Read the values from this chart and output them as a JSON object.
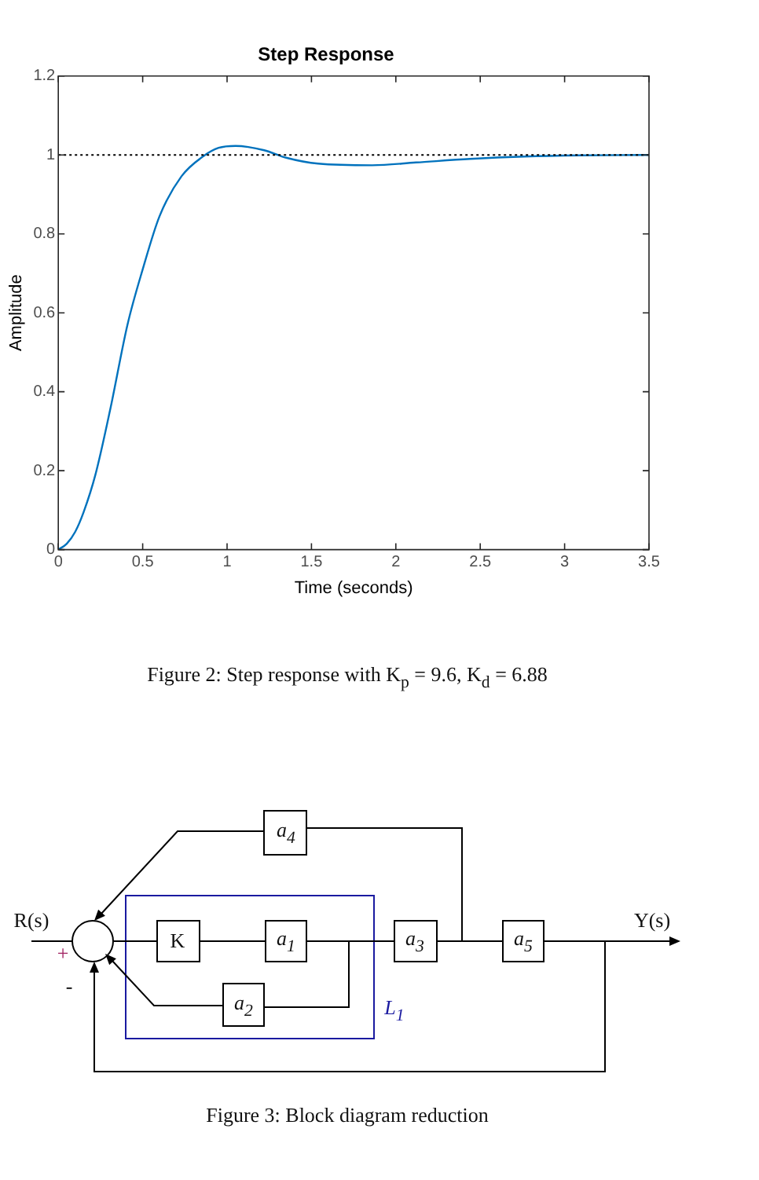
{
  "chart_data": {
    "type": "line",
    "title": "Step Response",
    "xlabel": "Time (seconds)",
    "ylabel": "Amplitude",
    "x": [
      0,
      0.05,
      0.1,
      0.15,
      0.22,
      0.31,
      0.41,
      0.5,
      0.6,
      0.73,
      0.86,
      0.95,
      1.05,
      1.22,
      1.35,
      1.54,
      1.86,
      2.12,
      2.44,
      2.76,
      3.09,
      3.5
    ],
    "series": [
      {
        "color": "#0072bd",
        "values": [
          0,
          0.015,
          0.045,
          0.095,
          0.19,
          0.36,
          0.57,
          0.71,
          0.845,
          0.946,
          0.997,
          1.018,
          1.023,
          1.012,
          0.993,
          0.978,
          0.974,
          0.981,
          0.99,
          0.996,
          0.999,
          1.0
        ]
      }
    ],
    "xlim": [
      0,
      3.5
    ],
    "xticks": [
      0,
      0.5,
      1,
      1.5,
      2,
      2.5,
      3,
      3.5
    ],
    "ylim": [
      0,
      1.2
    ],
    "yticks": [
      0,
      0.2,
      0.4,
      0.6,
      0.8,
      1,
      1.2
    ],
    "ref_lines": [
      {
        "axis": "y",
        "value": 1,
        "color": "#000000",
        "line_style": "dotted"
      }
    ],
    "legend": false,
    "marker": "none",
    "line_style": "solid",
    "annotations": [
      "Figure 2: Step response with K$_{p}$ = 9.6, K$_{d}$ = 6.88",
      "Figure 3: Block diagram reduction",
      "R(s)",
      "Y(s)",
      "+",
      "-",
      "K",
      "a$_{1}$",
      "a$_{2}$",
      "a$_{3}$",
      "a$_{4}$",
      "a$_{5}$",
      "L$_{1}$"
    ]
  }
}
